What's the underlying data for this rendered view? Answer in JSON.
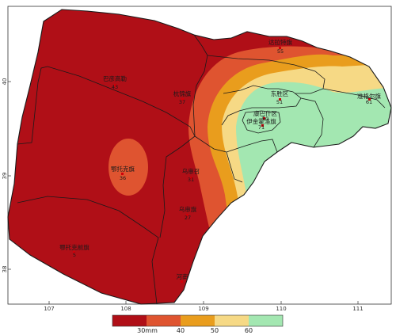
{
  "map": {
    "colors": {
      "below_30": "#b00f17",
      "30_40": "#df5430",
      "40_50": "#e99d1d",
      "50_60": "#f6d985",
      "above_60": "#a3e7b1",
      "boundary": "#1a1a1a"
    },
    "axis": {
      "x_ticks": [
        "107",
        "108",
        "109",
        "110",
        "111"
      ],
      "y_ticks": [
        "40",
        "39",
        "38"
      ]
    },
    "places": [
      {
        "id": "dalate",
        "name": "达拉特旗",
        "code": "55"
      },
      {
        "id": "hangjin",
        "name": "杭锦旗",
        "code": "37"
      },
      {
        "id": "bayin",
        "name": "巴彦高勒",
        "code": "43"
      },
      {
        "id": "dongsheng",
        "name": "东胜区",
        "code": "51"
      },
      {
        "id": "zhungeer",
        "name": "准格尔旗",
        "code": "61"
      },
      {
        "id": "kangbashi",
        "name": "康巴什区",
        "code": "50"
      },
      {
        "id": "ejinhoro",
        "name": "伊金霍洛旗",
        "code": "71"
      },
      {
        "id": "etuoke",
        "name": "鄂托克旗",
        "code": "36"
      },
      {
        "id": "wushen",
        "name": "乌审召",
        "code": "31"
      },
      {
        "id": "wushenqi",
        "name": "乌审旗",
        "code": "27"
      },
      {
        "id": "etuokeqian",
        "name": "鄂托克前旗",
        "code": "5"
      },
      {
        "id": "hetao",
        "name": "河南",
        "code": ""
      }
    ],
    "legend": {
      "labels": [
        "30mm",
        "40",
        "50",
        "60"
      ]
    }
  }
}
